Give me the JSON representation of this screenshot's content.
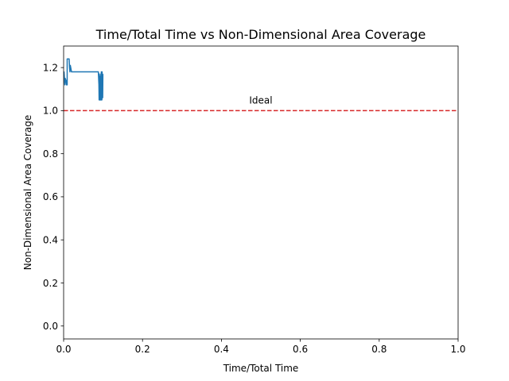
{
  "chart_data": {
    "type": "line",
    "title": "Time/Total Time vs Non-Dimensional Area Coverage",
    "xlabel": "Time/Total Time",
    "ylabel": "Non-Dimensional Area Coverage",
    "xlim": [
      0.0,
      1.0
    ],
    "ylim": [
      -0.06,
      1.3
    ],
    "x_ticks": [
      0.0,
      0.2,
      0.4,
      0.6,
      0.8,
      1.0
    ],
    "x_tick_labels": [
      "0.0",
      "0.2",
      "0.4",
      "0.6",
      "0.8",
      "1.0"
    ],
    "y_ticks": [
      0.0,
      0.2,
      0.4,
      0.6,
      0.8,
      1.0,
      1.2
    ],
    "y_tick_labels": [
      "0.0",
      "0.2",
      "0.4",
      "0.6",
      "0.8",
      "1.0",
      "1.2"
    ],
    "grid": false,
    "series": [
      {
        "color": "#1f77b4",
        "x": [
          0.0,
          0.001,
          0.003,
          0.004,
          0.006,
          0.007,
          0.009,
          0.009,
          0.011,
          0.014,
          0.015,
          0.016,
          0.017,
          0.02,
          0.04,
          0.06,
          0.08,
          0.088,
          0.089,
          0.0895,
          0.09,
          0.0905,
          0.091,
          0.0915,
          0.092,
          0.0925,
          0.093,
          0.0935,
          0.094,
          0.0945,
          0.095,
          0.0955,
          0.096,
          0.0965,
          0.097,
          0.0975,
          0.098,
          0.0985,
          0.099,
          0.0995
        ],
        "y": [
          1.16,
          1.18,
          1.12,
          1.15,
          1.14,
          1.12,
          1.12,
          1.24,
          1.24,
          1.24,
          1.2,
          1.18,
          1.21,
          1.18,
          1.18,
          1.18,
          1.18,
          1.18,
          1.14,
          1.12,
          1.05,
          1.17,
          1.05,
          1.12,
          1.05,
          1.16,
          1.05,
          1.12,
          1.05,
          1.17,
          1.05,
          1.18,
          1.05,
          1.17,
          1.05,
          1.18,
          1.06,
          1.17,
          1.06,
          1.17
        ]
      }
    ],
    "reference_line": {
      "y": 1.0,
      "color": "#d62728",
      "style": "dashed",
      "label": "Ideal",
      "label_x": 0.5
    }
  }
}
